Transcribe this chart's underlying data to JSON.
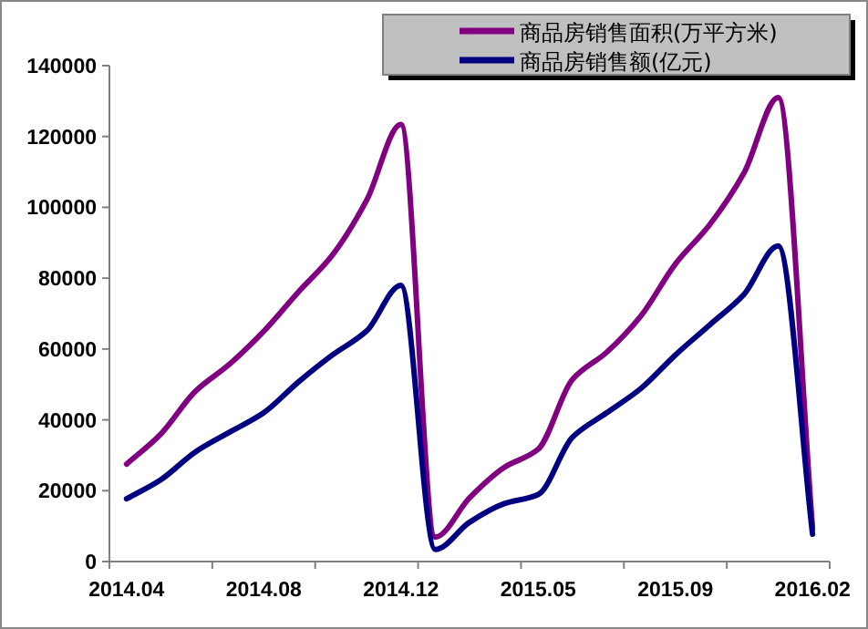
{
  "chart_data": {
    "type": "line",
    "categories": [
      "2014.04",
      null,
      null,
      null,
      "2014.08",
      null,
      null,
      null,
      "2014.12",
      null,
      null,
      null,
      "2015.05",
      null,
      null,
      null,
      "2015.09",
      null,
      null,
      null,
      "2016.02"
    ],
    "series": [
      {
        "name": "商品房销售面积(万平方米)",
        "color": "#800080",
        "values": [
          27500,
          36000,
          48000,
          55700,
          65000,
          76000,
          86500,
          102000,
          123400,
          6900,
          18000,
          26500,
          31700,
          51400,
          59100,
          69400,
          84000,
          95100,
          109700,
          131000,
          9400
        ]
      },
      {
        "name": "商品房销售额(亿元)",
        "color": "#000080",
        "values": [
          17700,
          23100,
          30900,
          36500,
          42000,
          50600,
          58300,
          65100,
          78000,
          3400,
          11100,
          16300,
          18900,
          35100,
          42000,
          48900,
          58300,
          66800,
          75400,
          89100,
          7700
        ]
      }
    ],
    "ylim": [
      0,
      140000
    ],
    "yticks": [
      0,
      20000,
      40000,
      60000,
      80000,
      100000,
      120000,
      140000
    ],
    "legend": "top right",
    "grid": false
  }
}
